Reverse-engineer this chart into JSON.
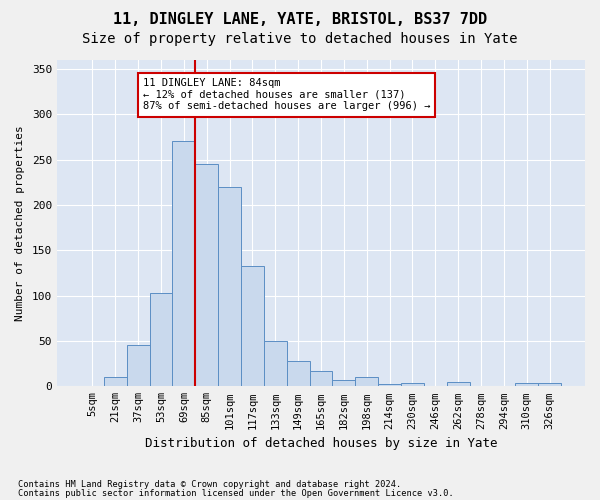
{
  "title": "11, DINGLEY LANE, YATE, BRISTOL, BS37 7DD",
  "subtitle": "Size of property relative to detached houses in Yate",
  "xlabel": "Distribution of detached houses by size in Yate",
  "ylabel": "Number of detached properties",
  "footnote1": "Contains HM Land Registry data © Crown copyright and database right 2024.",
  "footnote2": "Contains public sector information licensed under the Open Government Licence v3.0.",
  "annotation_line1": "11 DINGLEY LANE: 84sqm",
  "annotation_line2": "← 12% of detached houses are smaller (137)",
  "annotation_line3": "87% of semi-detached houses are larger (996) →",
  "bar_labels": [
    "5sqm",
    "21sqm",
    "37sqm",
    "53sqm",
    "69sqm",
    "85sqm",
    "101sqm",
    "117sqm",
    "133sqm",
    "149sqm",
    "165sqm",
    "182sqm",
    "198sqm",
    "214sqm",
    "230sqm",
    "246sqm",
    "262sqm",
    "278sqm",
    "294sqm",
    "310sqm",
    "326sqm"
  ],
  "bar_values": [
    0,
    10,
    46,
    103,
    271,
    245,
    220,
    133,
    50,
    28,
    17,
    7,
    10,
    3,
    4,
    0,
    5,
    0,
    0,
    4,
    4
  ],
  "bar_color": "#c9d9ed",
  "bar_edge_color": "#5b8ec4",
  "vline_x": 4.5,
  "vline_color": "#cc0000",
  "ylim": [
    0,
    360
  ],
  "yticks": [
    0,
    50,
    100,
    150,
    200,
    250,
    300,
    350
  ],
  "bg_color": "#dde6f3",
  "grid_color": "#ffffff",
  "title_fontsize": 11,
  "subtitle_fontsize": 10,
  "annotation_box_color": "#ffffff",
  "annotation_box_edge": "#cc0000"
}
